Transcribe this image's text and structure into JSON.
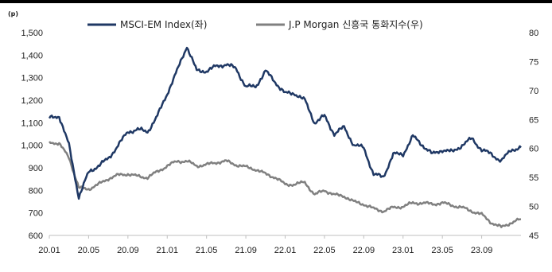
{
  "chart_data": {
    "type": "line",
    "unit_left": "(p)",
    "x_tick_labels": [
      "20.01",
      "20.05",
      "20.09",
      "21.01",
      "21.05",
      "21.09",
      "22.01",
      "22.05",
      "22.09",
      "23.01",
      "23.05",
      "23.09"
    ],
    "y_left": {
      "ticks": [
        "600",
        "700",
        "800",
        "900",
        "1,000",
        "1,100",
        "1,200",
        "1,300",
        "1,400",
        "1,500"
      ],
      "ylim": [
        600,
        1500
      ]
    },
    "y_right": {
      "ticks": [
        "45",
        "50",
        "55",
        "60",
        "65",
        "70",
        "75",
        "80"
      ],
      "ylim": [
        45,
        80
      ]
    },
    "grid": false,
    "legend_position": "top",
    "series": [
      {
        "name": "MSCI-EM Index(좌)",
        "axis": "left",
        "color": "#1f3864",
        "x": [
          "20.01",
          "20.02",
          "20.03a",
          "20.03b",
          "20.04",
          "20.05",
          "20.06",
          "20.07",
          "20.08",
          "20.09",
          "20.10",
          "20.11",
          "20.12",
          "21.01",
          "21.02",
          "21.03",
          "21.04",
          "21.05",
          "21.06",
          "21.07",
          "21.08",
          "21.09",
          "21.10",
          "21.11",
          "21.12",
          "22.01",
          "22.02",
          "22.03",
          "22.04",
          "22.05",
          "22.06",
          "22.07",
          "22.08",
          "22.09",
          "22.10",
          "22.11",
          "22.12",
          "23.01",
          "23.02",
          "23.03",
          "23.04",
          "23.05",
          "23.06",
          "23.07",
          "23.08",
          "23.09",
          "23.10",
          "23.11",
          "23.12"
        ],
        "values": [
          1120,
          1130,
          1000,
          770,
          880,
          910,
          940,
          1000,
          1060,
          1070,
          1060,
          1130,
          1230,
          1330,
          1440,
          1330,
          1330,
          1350,
          1360,
          1340,
          1260,
          1260,
          1330,
          1280,
          1230,
          1230,
          1200,
          1100,
          1130,
          1050,
          1080,
          1000,
          990,
          870,
          860,
          960,
          960,
          1040,
          1000,
          960,
          980,
          970,
          1000,
          1030,
          980,
          960,
          930,
          980,
          990
        ]
      },
      {
        "name": "J.P Morgan 신흥국 통화지수(우)",
        "axis": "right",
        "color": "#808080",
        "x": [
          "20.01",
          "20.02",
          "20.03a",
          "20.03b",
          "20.04",
          "20.05",
          "20.06",
          "20.07",
          "20.08",
          "20.09",
          "20.10",
          "20.11",
          "20.12",
          "21.01",
          "21.02",
          "21.03",
          "21.04",
          "21.05",
          "21.06",
          "21.07",
          "21.08",
          "21.09",
          "21.10",
          "21.11",
          "21.12",
          "22.01",
          "22.02",
          "22.03",
          "22.04",
          "22.05",
          "22.06",
          "22.07",
          "22.08",
          "22.09",
          "22.10",
          "22.11",
          "22.12",
          "23.01",
          "23.02",
          "23.03",
          "23.04",
          "23.05",
          "23.06",
          "23.07",
          "23.08",
          "23.09",
          "23.10",
          "23.11",
          "23.12"
        ],
        "values": [
          61.2,
          60.8,
          58.5,
          53.2,
          53.0,
          53.8,
          54.8,
          55.4,
          55.6,
          55.2,
          55.0,
          56.0,
          57.0,
          57.8,
          57.8,
          57.0,
          57.2,
          57.6,
          57.8,
          57.2,
          56.8,
          56.4,
          55.6,
          55.0,
          53.8,
          53.8,
          54.2,
          52.0,
          52.8,
          52.0,
          51.8,
          50.8,
          50.4,
          49.6,
          49.2,
          49.8,
          50.0,
          50.6,
          50.6,
          50.4,
          50.6,
          50.2,
          49.8,
          49.2,
          48.6,
          47.2,
          46.4,
          47.2,
          47.8
        ]
      }
    ]
  }
}
